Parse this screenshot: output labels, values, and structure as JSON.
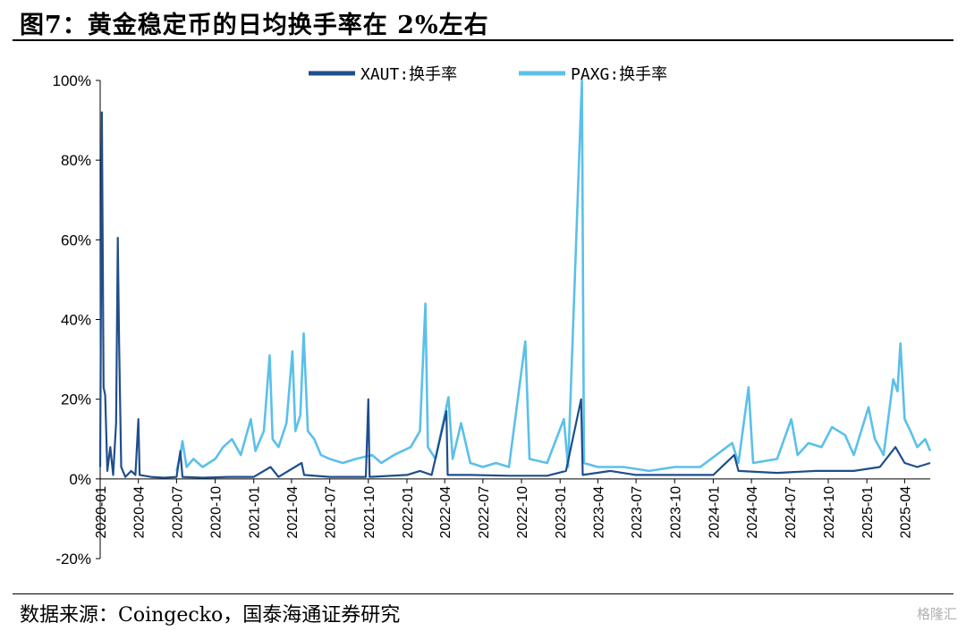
{
  "figure": {
    "title": "图7：黄金稳定币的日均换手率在 2%左右",
    "source": "数据来源：Coingecko，国泰海通证券研究",
    "watermark": "格隆汇"
  },
  "chart_data": {
    "type": "line",
    "title": "",
    "xlabel": "",
    "ylabel": "",
    "ylim": [
      -20,
      100
    ],
    "y_ticks": [
      "100%",
      "80%",
      "60%",
      "40%",
      "20%",
      "0%",
      "-20%"
    ],
    "y_tick_values": [
      100,
      80,
      60,
      40,
      20,
      0,
      -20
    ],
    "x_ticks": [
      "2020-01",
      "2020-04",
      "2020-07",
      "2020-10",
      "2021-01",
      "2021-04",
      "2021-07",
      "2021-10",
      "2022-01",
      "2022-04",
      "2022-07",
      "2022-10",
      "2023-01",
      "2023-04",
      "2023-07",
      "2023-10",
      "2024-01",
      "2024-04",
      "2024-07",
      "2024-10",
      "2025-01",
      "2025-04"
    ],
    "x_range": [
      "2020-01",
      "2025-06"
    ],
    "legend_position": "top",
    "colors": {
      "XAUT": "#1f4e8c",
      "PAXG": "#5bc0ea"
    },
    "series": [
      {
        "name": "XAUT:换手率",
        "points": [
          [
            "2020-01-01",
            3
          ],
          [
            "2020-01-05",
            92
          ],
          [
            "2020-01-09",
            23
          ],
          [
            "2020-01-13",
            21
          ],
          [
            "2020-01-18",
            2
          ],
          [
            "2020-01-25",
            8
          ],
          [
            "2020-02-01",
            1
          ],
          [
            "2020-02-08",
            14
          ],
          [
            "2020-02-12",
            60.5
          ],
          [
            "2020-02-15",
            35
          ],
          [
            "2020-02-20",
            3
          ],
          [
            "2020-03-01",
            0.5
          ],
          [
            "2020-03-15",
            2
          ],
          [
            "2020-03-25",
            1
          ],
          [
            "2020-04-01",
            15
          ],
          [
            "2020-04-04",
            1
          ],
          [
            "2020-05-01",
            0.5
          ],
          [
            "2020-06-01",
            0.3
          ],
          [
            "2020-07-01",
            0.5
          ],
          [
            "2020-07-10",
            7
          ],
          [
            "2020-07-15",
            0.5
          ],
          [
            "2020-09-01",
            0.3
          ],
          [
            "2020-11-01",
            0.5
          ],
          [
            "2021-01-01",
            0.5
          ],
          [
            "2021-02-10",
            3
          ],
          [
            "2021-03-01",
            0.5
          ],
          [
            "2021-04-25",
            4
          ],
          [
            "2021-05-01",
            1
          ],
          [
            "2021-07-01",
            0.5
          ],
          [
            "2021-09-25",
            0.5
          ],
          [
            "2021-10-01",
            20
          ],
          [
            "2021-10-04",
            0.5
          ],
          [
            "2022-01-01",
            1
          ],
          [
            "2022-02-01",
            2
          ],
          [
            "2022-03-01",
            1
          ],
          [
            "2022-04-05",
            17
          ],
          [
            "2022-04-08",
            1
          ],
          [
            "2022-06-01",
            1
          ],
          [
            "2022-09-01",
            0.8
          ],
          [
            "2022-12-01",
            0.8
          ],
          [
            "2023-01-15",
            2
          ],
          [
            "2023-02-20",
            20
          ],
          [
            "2023-02-24",
            1
          ],
          [
            "2023-05-01",
            2
          ],
          [
            "2023-07-01",
            1
          ],
          [
            "2023-10-01",
            1
          ],
          [
            "2024-01-01",
            1
          ],
          [
            "2024-02-20",
            6
          ],
          [
            "2024-03-01",
            2
          ],
          [
            "2024-06-01",
            1.5
          ],
          [
            "2024-09-01",
            2
          ],
          [
            "2024-12-01",
            2
          ],
          [
            "2025-02-01",
            3
          ],
          [
            "2025-03-10",
            8
          ],
          [
            "2025-04-01",
            4
          ],
          [
            "2025-05-01",
            3
          ],
          [
            "2025-06-01",
            4
          ]
        ]
      },
      {
        "name": "PAXG:换手率",
        "points": [
          [
            "2020-07-01",
            2
          ],
          [
            "2020-07-10",
            6
          ],
          [
            "2020-07-15",
            9.5
          ],
          [
            "2020-07-25",
            3
          ],
          [
            "2020-08-10",
            5
          ],
          [
            "2020-09-01",
            3
          ],
          [
            "2020-10-01",
            5
          ],
          [
            "2020-10-20",
            8
          ],
          [
            "2020-11-10",
            10
          ],
          [
            "2020-12-01",
            6
          ],
          [
            "2020-12-25",
            15
          ],
          [
            "2021-01-05",
            7
          ],
          [
            "2021-01-25",
            12
          ],
          [
            "2021-02-08",
            31
          ],
          [
            "2021-02-15",
            10
          ],
          [
            "2021-03-01",
            8
          ],
          [
            "2021-03-20",
            14
          ],
          [
            "2021-04-03",
            32
          ],
          [
            "2021-04-10",
            12
          ],
          [
            "2021-04-22",
            16
          ],
          [
            "2021-04-30",
            36.5
          ],
          [
            "2021-05-10",
            12
          ],
          [
            "2021-05-25",
            10
          ],
          [
            "2021-06-10",
            6
          ],
          [
            "2021-07-01",
            5
          ],
          [
            "2021-08-01",
            4
          ],
          [
            "2021-09-01",
            5
          ],
          [
            "2021-10-10",
            6
          ],
          [
            "2021-11-01",
            4
          ],
          [
            "2021-12-01",
            6
          ],
          [
            "2022-01-10",
            8
          ],
          [
            "2022-02-01",
            12
          ],
          [
            "2022-02-14",
            44
          ],
          [
            "2022-02-20",
            8
          ],
          [
            "2022-03-10",
            5
          ],
          [
            "2022-04-10",
            20.5
          ],
          [
            "2022-04-20",
            5
          ],
          [
            "2022-05-10",
            14
          ],
          [
            "2022-06-01",
            4
          ],
          [
            "2022-07-01",
            3
          ],
          [
            "2022-08-01",
            4
          ],
          [
            "2022-09-01",
            3
          ],
          [
            "2022-10-10",
            34.5
          ],
          [
            "2022-10-20",
            5
          ],
          [
            "2022-12-01",
            4
          ],
          [
            "2023-01-10",
            15
          ],
          [
            "2023-01-20",
            3
          ],
          [
            "2023-02-22",
            100
          ],
          [
            "2023-02-27",
            4
          ],
          [
            "2023-04-01",
            3
          ],
          [
            "2023-06-01",
            3
          ],
          [
            "2023-08-01",
            2
          ],
          [
            "2023-10-01",
            3
          ],
          [
            "2023-12-01",
            3
          ],
          [
            "2024-02-15",
            9
          ],
          [
            "2024-03-01",
            4
          ],
          [
            "2024-03-25",
            23
          ],
          [
            "2024-04-05",
            4
          ],
          [
            "2024-06-01",
            5
          ],
          [
            "2024-07-05",
            15
          ],
          [
            "2024-07-20",
            6
          ],
          [
            "2024-08-15",
            9
          ],
          [
            "2024-09-15",
            8
          ],
          [
            "2024-10-10",
            13
          ],
          [
            "2024-11-10",
            11
          ],
          [
            "2024-12-01",
            6
          ],
          [
            "2025-01-05",
            18
          ],
          [
            "2025-01-20",
            10
          ],
          [
            "2025-02-10",
            6
          ],
          [
            "2025-03-05",
            25
          ],
          [
            "2025-03-15",
            22
          ],
          [
            "2025-03-22",
            34
          ],
          [
            "2025-04-01",
            15
          ],
          [
            "2025-04-15",
            12
          ],
          [
            "2025-05-01",
            8
          ],
          [
            "2025-05-20",
            10
          ],
          [
            "2025-06-01",
            7
          ]
        ]
      }
    ]
  }
}
